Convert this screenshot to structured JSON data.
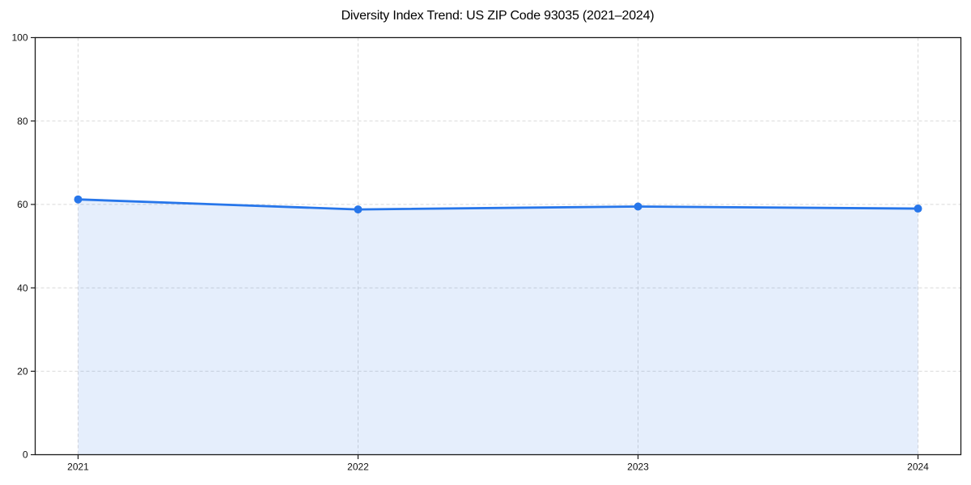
{
  "chart_data": {
    "type": "area",
    "title": "Diversity Index Trend: US ZIP Code 93035 (2021–2024)",
    "categories": [
      "2021",
      "2022",
      "2023",
      "2024"
    ],
    "series": [
      {
        "name": "Diversity Index",
        "values": [
          61.2,
          58.8,
          59.5,
          59.0
        ]
      }
    ],
    "xlabel": "",
    "ylabel": "",
    "ylim": [
      0,
      100
    ],
    "yticks": [
      0,
      20,
      40,
      60,
      80,
      100
    ],
    "grid": true,
    "grid_style": "dashed",
    "legend_position": "none",
    "colors": {
      "line": "#2776ea",
      "marker": "#2776ea",
      "fill": "#2776ea",
      "fill_opacity": "0.12",
      "grid": "#d9d9d9",
      "spine": "#1a1a1a",
      "tick_label": "#111111",
      "background": "#ffffff",
      "title": "#000000"
    }
  }
}
